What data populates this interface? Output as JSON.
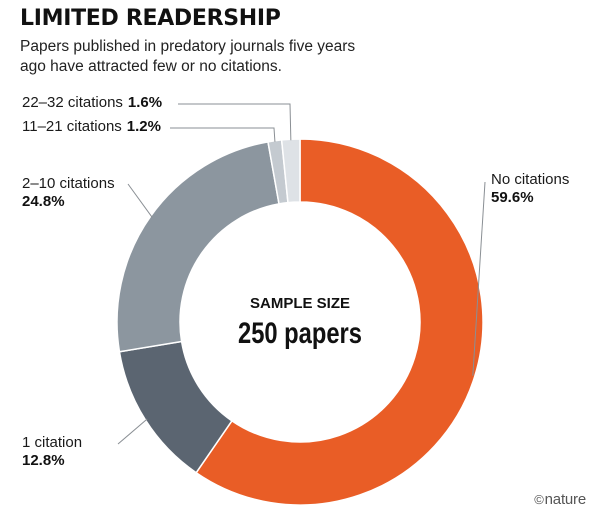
{
  "header": {
    "title": "LIMITED READERSHIP",
    "subtitle": "Papers published in predatory journals five years ago have attracted few or no citations."
  },
  "center": {
    "label": "SAMPLE SIZE",
    "value": "250 papers"
  },
  "credit": {
    "symbol": "©",
    "text": "nature"
  },
  "chart_data": {
    "type": "pie",
    "style": "donut",
    "title": "LIMITED READERSHIP",
    "subtitle": "Papers published in predatory journals five years ago have attracted few or no citations.",
    "categories": [
      "No citations",
      "1 citation",
      "2–10 citations",
      "11–21 citations",
      "22–32 citations"
    ],
    "values": [
      59.6,
      12.8,
      24.8,
      1.2,
      1.6
    ],
    "value_labels": [
      "59.6%",
      "12.8%",
      "24.8%",
      "1.2%",
      "1.6%"
    ],
    "colors": [
      "#e95d26",
      "#5b6571",
      "#8c969f",
      "#c4cad0",
      "#dee2e6"
    ],
    "center_text": [
      "SAMPLE SIZE",
      "250 papers"
    ],
    "legend": "none"
  }
}
